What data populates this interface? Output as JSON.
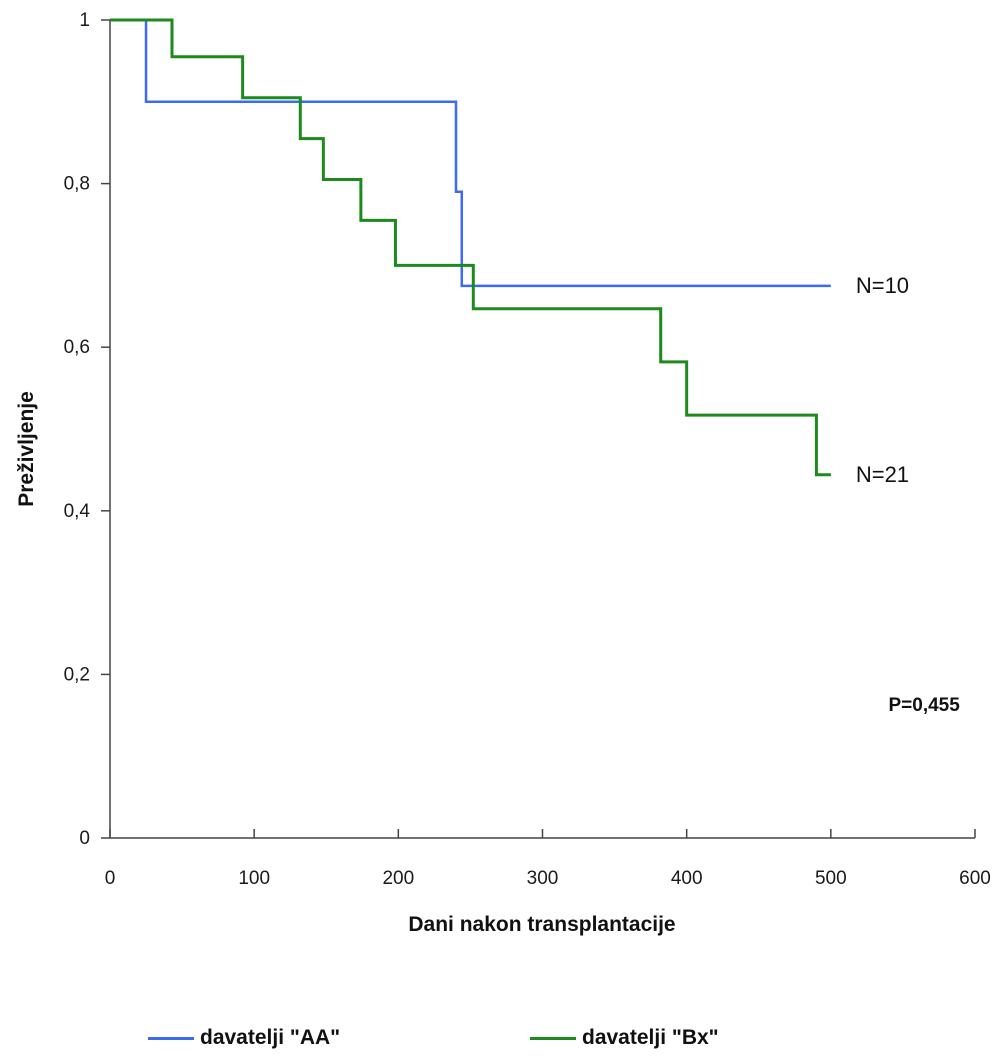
{
  "chart_data": {
    "type": "line",
    "step": true,
    "xlabel": "Dani nakon transplantacije",
    "ylabel": "Preživljenje",
    "xlim": [
      0,
      600
    ],
    "ylim": [
      0,
      1
    ],
    "x_ticks": [
      0,
      100,
      200,
      300,
      400,
      500,
      600
    ],
    "y_ticks": [
      0,
      0.2,
      0.4,
      0.6,
      0.8,
      1
    ],
    "x_tick_labels": [
      "0",
      "100",
      "200",
      "300",
      "400",
      "500",
      "600"
    ],
    "y_tick_labels": [
      "0",
      "0,2",
      "0,4",
      "0,6",
      "0,8",
      "1"
    ],
    "grid": false,
    "legend_position": "bottom",
    "series": [
      {
        "name": "davatelji \"AA\"",
        "color": "#3b6cf0",
        "x": [
          0,
          25,
          240,
          242,
          244,
          500
        ],
        "y": [
          1,
          0.9,
          0.79,
          0.79,
          0.675,
          0.675
        ],
        "end_label": "N=10"
      },
      {
        "name": "davatelji \"Bx\"",
        "color": "#1d8a1d",
        "x": [
          0,
          43,
          92,
          132,
          148,
          174,
          198,
          252,
          382,
          400,
          490,
          500
        ],
        "y": [
          1,
          0.955,
          0.905,
          0.855,
          0.805,
          0.755,
          0.7,
          0.647,
          0.582,
          0.517,
          0.444,
          0.444
        ],
        "end_label": "N=21"
      }
    ],
    "annotations": [
      {
        "text": "P=0,455",
        "x": 540,
        "y": 0.155
      }
    ]
  }
}
